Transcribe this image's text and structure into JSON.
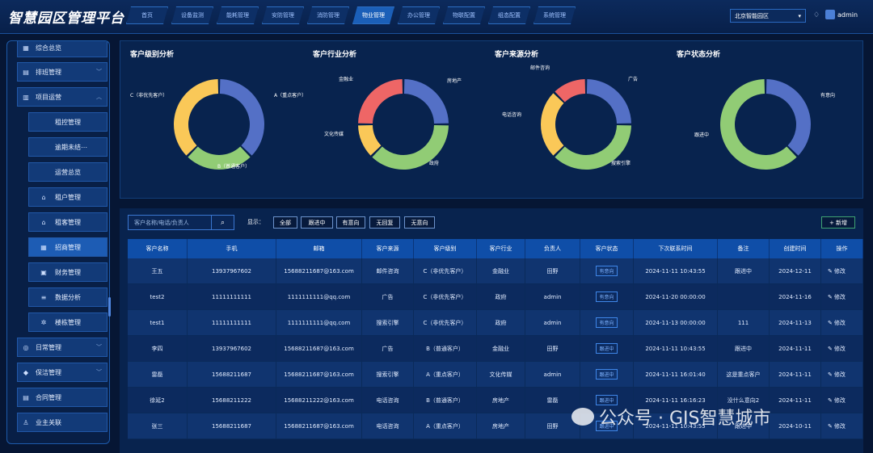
{
  "header": {
    "title": "智慧园区管理平台",
    "tabs": [
      "首页",
      "设备监测",
      "能耗管理",
      "安防管理",
      "消防管理",
      "物业管理",
      "办公管理",
      "物联配置",
      "组态配置",
      "系统管理"
    ],
    "active_tab": 5,
    "campus": "北京智能园区",
    "user": "admin"
  },
  "sidebar": {
    "items": [
      {
        "label": "综合总览",
        "icon": "dashboard-icon",
        "type": "main"
      },
      {
        "label": "排班管理",
        "icon": "calendar-icon",
        "type": "main",
        "chevron": "﹀"
      },
      {
        "label": "项目运营",
        "icon": "chart-icon",
        "type": "main",
        "chevron": "︿"
      },
      {
        "label": "租控管理",
        "type": "sub"
      },
      {
        "label": "逾期未结⋯",
        "type": "sub"
      },
      {
        "label": "运营总览",
        "type": "sub"
      },
      {
        "label": "租户管理",
        "icon": "home-icon",
        "type": "sub2"
      },
      {
        "label": "租客管理",
        "icon": "home-icon",
        "type": "sub2"
      },
      {
        "label": "招商管理",
        "icon": "grid-icon",
        "type": "sub2",
        "active": true
      },
      {
        "label": "财务管理",
        "icon": "folder-icon",
        "type": "sub2"
      },
      {
        "label": "数据分析",
        "icon": "stack-icon",
        "type": "sub2"
      },
      {
        "label": "楼栋管理",
        "icon": "gear-icon",
        "type": "sub2"
      },
      {
        "label": "日常管理",
        "icon": "globe-icon",
        "type": "main",
        "chevron": "﹀"
      },
      {
        "label": "保洁管理",
        "icon": "broom-icon",
        "type": "main",
        "chevron": "﹀"
      },
      {
        "label": "合同管理",
        "icon": "document-icon",
        "type": "main"
      },
      {
        "label": "业主关联",
        "icon": "user-icon",
        "type": "main"
      }
    ]
  },
  "charts": {
    "titles": [
      "客户级别分析",
      "客户行业分析",
      "客户来源分析",
      "客户状态分析"
    ]
  },
  "chart_data": [
    {
      "type": "pie",
      "title": "客户级别分析",
      "slices": [
        {
          "label": "A（重点客户）",
          "value": 3,
          "color": "#5470c6"
        },
        {
          "label": "B（普通客户）",
          "value": 2,
          "color": "#91cc75"
        },
        {
          "label": "C（非优先客户）",
          "value": 3,
          "color": "#fac858"
        }
      ]
    },
    {
      "type": "pie",
      "title": "客户行业分析",
      "slices": [
        {
          "label": "房地产",
          "value": 2,
          "color": "#5470c6"
        },
        {
          "label": "政府",
          "value": 3,
          "color": "#91cc75"
        },
        {
          "label": "文化传媒",
          "value": 1,
          "color": "#fac858"
        },
        {
          "label": "金融业",
          "value": 2,
          "color": "#ee6666"
        }
      ]
    },
    {
      "type": "pie",
      "title": "客户来源分析",
      "slices": [
        {
          "label": "广告",
          "value": 2,
          "color": "#5470c6"
        },
        {
          "label": "搜索引擎",
          "value": 3,
          "color": "#91cc75"
        },
        {
          "label": "电话咨询",
          "value": 2,
          "color": "#fac858"
        },
        {
          "label": "邮件咨询",
          "value": 1,
          "color": "#ee6666"
        }
      ]
    },
    {
      "type": "pie",
      "title": "客户状态分析",
      "slices": [
        {
          "label": "有意向",
          "value": 3,
          "color": "#5470c6"
        },
        {
          "label": "跟进中",
          "value": 5,
          "color": "#91cc75"
        }
      ]
    }
  ],
  "toolbar": {
    "search_placeholder": "客户名称/电话/负责人",
    "show_label": "显示：",
    "filters": [
      "全部",
      "跟进中",
      "有意向",
      "无回复",
      "无意向"
    ],
    "add_label": "+ 新增"
  },
  "table": {
    "headers": [
      "客户名称",
      "手机",
      "邮箱",
      "客户来源",
      "客户级别",
      "客户行业",
      "负责人",
      "客户状态",
      "下次联系时间",
      "备注",
      "创建时间",
      "操作"
    ],
    "rows": [
      [
        "王五",
        "13937967602",
        "15688211687@163.com",
        "邮件咨询",
        "C（非优先客户）",
        "金融业",
        "田野",
        "有意向",
        "2024-11-11 10:43:55",
        "跟进中",
        "2024-12-11",
        "修改"
      ],
      [
        "test2",
        "11111111111",
        "1111111111@qq.com",
        "广告",
        "C（非优先客户）",
        "政府",
        "admin",
        "有意向",
        "2024-11-20 00:00:00",
        "",
        "2024-11-16",
        "修改"
      ],
      [
        "test1",
        "11111111111",
        "1111111111@qq.com",
        "搜索引擎",
        "C（非优先客户）",
        "政府",
        "admin",
        "有意向",
        "2024-11-13 00:00:00",
        "111",
        "2024-11-13",
        "修改"
      ],
      [
        "李四",
        "13937967602",
        "15688211687@163.com",
        "广告",
        "B（普通客户）",
        "金融业",
        "田野",
        "跟进中",
        "2024-11-11 10:43:55",
        "跟进中",
        "2024-11-11",
        "修改"
      ],
      [
        "雷磊",
        "15688211687",
        "15688211687@163.com",
        "搜索引擎",
        "A（重点客户）",
        "文化传媒",
        "admin",
        "跟进中",
        "2024-11-11 16:01:40",
        "这是重点客户",
        "2024-11-11",
        "修改"
      ],
      [
        "徐延2",
        "15688211222",
        "15688211222@163.com",
        "电话咨询",
        "B（普通客户）",
        "房地产",
        "雷磊",
        "跟进中",
        "2024-11-11 16:16:23",
        "没什么意向2",
        "2024-11-11",
        "修改"
      ],
      [
        "张三",
        "15688211687",
        "15688211687@163.com",
        "电话咨询",
        "A（重点客户）",
        "房地产",
        "田野",
        "跟进中",
        "2024-11-11 10:43:55",
        "跟进中",
        "2024-10-11",
        "修改"
      ]
    ]
  },
  "watermark": "公众号 · GIS智慧城市"
}
